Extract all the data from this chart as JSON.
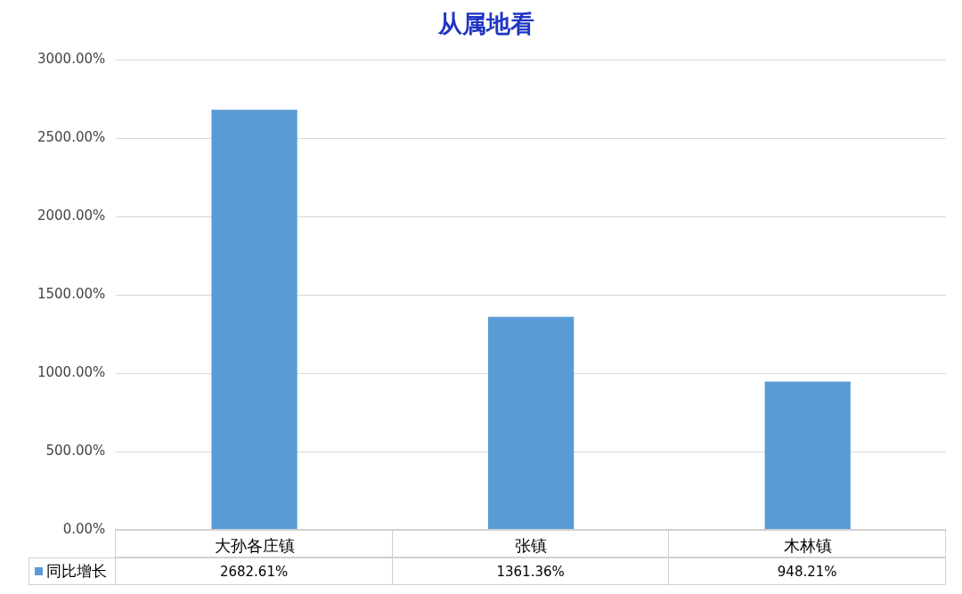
{
  "chart_data": {
    "type": "bar",
    "title": "从属地看",
    "categories": [
      "大孙各庄镇",
      "张镇",
      "木林镇"
    ],
    "series": [
      {
        "name": "同比增长",
        "color": "#5b9bd5",
        "values": [
          2682.61,
          1361.36,
          948.21
        ],
        "value_labels": [
          "2682.61%",
          "1361.36%",
          "948.21%"
        ]
      }
    ],
    "ylim": [
      0,
      3000
    ],
    "yticks": [
      {
        "value": 0,
        "label": "0.00%"
      },
      {
        "value": 500,
        "label": "500.00%"
      },
      {
        "value": 1000,
        "label": "1000.00%"
      },
      {
        "value": 1500,
        "label": "1500.00%"
      },
      {
        "value": 2000,
        "label": "2000.00%"
      },
      {
        "value": 2500,
        "label": "2500.00%"
      },
      {
        "value": 3000,
        "label": "3000.00%"
      }
    ],
    "grid": "y",
    "legend": "bottom"
  }
}
